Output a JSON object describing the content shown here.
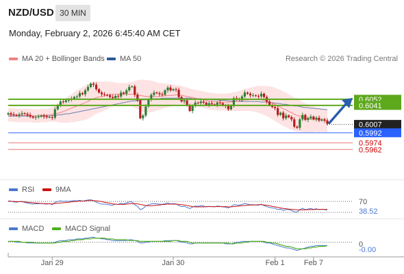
{
  "header": {
    "symbol": "NZD/USD",
    "timeframe": "30 MIN"
  },
  "datetime": "Monday, February 2, 2026 6:45:40 AM CET",
  "legend": {
    "ma20_label": "MA 20 + Bollinger Bands",
    "ma50_label": "MA 50",
    "copyright": "Research © 2026 Trading Central"
  },
  "rsi_panel": {
    "rsi_label": "RSI",
    "ma_label": "9MA",
    "level": "70",
    "value": "38.52"
  },
  "macd_panel": {
    "macd_label": "MACD",
    "signal_label": "MACD Signal",
    "zero_tick": "0",
    "value": "-0.00"
  },
  "colors": {
    "up": "#2e7d32",
    "down": "#b71c1c",
    "ma20": "#f08080",
    "ma50": "#2b5797",
    "band": "#fde3e3",
    "resistance": "#5ea81c",
    "support": "#2962ff",
    "support_weak": "#f2a0a0",
    "rsi": "#4a78d0",
    "rsi_ma": "#cc1111",
    "macd": "#4a78d0",
    "macd_signal": "#4caf1a"
  },
  "chart_data": {
    "type": "candlestick",
    "symbol": "NZD/USD",
    "ylim": [
      0.5955,
      0.6085
    ],
    "x_tick_labels": [
      "Jan 29",
      "Jan 30",
      "Feb 1",
      "Feb 7"
    ],
    "x_tick_index": [
      16,
      60,
      97,
      111
    ],
    "closes": [
      0.6027,
      0.6025,
      0.6024,
      0.6023,
      0.6025,
      0.6027,
      0.6026,
      0.6024,
      0.6021,
      0.6019,
      0.602,
      0.6021,
      0.6023,
      0.6021,
      0.602,
      0.602,
      0.6019,
      0.6034,
      0.6042,
      0.6048,
      0.6047,
      0.605,
      0.6051,
      0.6053,
      0.6056,
      0.6057,
      0.6063,
      0.6061,
      0.6068,
      0.6074,
      0.608,
      0.6078,
      0.607,
      0.6064,
      0.6061,
      0.606,
      0.6059,
      0.6056,
      0.6054,
      0.6058,
      0.6057,
      0.6064,
      0.6062,
      0.6068,
      0.6074,
      0.6075,
      0.606,
      0.605,
      0.6018,
      0.6023,
      0.6039,
      0.6052,
      0.606,
      0.6064,
      0.6063,
      0.6061,
      0.606,
      0.6068,
      0.6073,
      0.6068,
      0.607,
      0.6069,
      0.6056,
      0.6048,
      0.605,
      0.6042,
      0.6031,
      0.604,
      0.6046,
      0.6045,
      0.6048,
      0.6046,
      0.6042,
      0.6045,
      0.6043,
      0.6042,
      0.6046,
      0.6045,
      0.6041,
      0.604,
      0.6034,
      0.6041,
      0.6054,
      0.6053,
      0.6051,
      0.6057,
      0.6064,
      0.6062,
      0.6059,
      0.6059,
      0.6058,
      0.6057,
      0.6062,
      0.6056,
      0.6048,
      0.6042,
      0.6038,
      0.6036,
      0.6024,
      0.6028,
      0.6018,
      0.6023,
      0.602,
      0.6016,
      0.6003,
      0.6001,
      0.6016,
      0.6024,
      0.6015,
      0.6018,
      0.6021,
      0.6016,
      0.6019,
      0.6014,
      0.6016,
      0.6014,
      0.6008
    ],
    "ma20": [
      0.6024,
      0.6024,
      0.6024,
      0.6023,
      0.6023,
      0.6023,
      0.6023,
      0.6023,
      0.6023,
      0.6022,
      0.6022,
      0.6022,
      0.6023,
      0.6023,
      0.6023,
      0.6024,
      0.6025,
      0.6026,
      0.6027,
      0.6028,
      0.603,
      0.6032,
      0.6034,
      0.6036,
      0.6038,
      0.604,
      0.6042,
      0.6044,
      0.6046,
      0.6048,
      0.6051,
      0.6053,
      0.6055,
      0.6056,
      0.6057,
      0.6058,
      0.6059,
      0.606,
      0.6061,
      0.6061,
      0.6061,
      0.6061,
      0.6061,
      0.6061,
      0.6061,
      0.6061,
      0.6061,
      0.606,
      0.6059,
      0.6058,
      0.6057,
      0.6057,
      0.6057,
      0.6057,
      0.6057,
      0.6057,
      0.6058,
      0.6058,
      0.6059,
      0.6059,
      0.6059,
      0.606,
      0.606,
      0.6059,
      0.6058,
      0.6057,
      0.6056,
      0.6055,
      0.6054,
      0.6053,
      0.6052,
      0.6051,
      0.605,
      0.6049,
      0.6048,
      0.6048,
      0.6047,
      0.6047,
      0.6047,
      0.6047,
      0.6047,
      0.6047,
      0.6048,
      0.6048,
      0.6049,
      0.605,
      0.6051,
      0.6051,
      0.6052,
      0.6052,
      0.6052,
      0.6052,
      0.6051,
      0.605,
      0.6049,
      0.6047,
      0.6045,
      0.6043,
      0.604,
      0.6038,
      0.6035,
      0.6033,
      0.603,
      0.6028,
      0.6025,
      0.6023,
      0.6022,
      0.602,
      0.6019,
      0.6018,
      0.6017,
      0.6016,
      0.6016,
      0.6015,
      0.6015,
      0.6014,
      0.6014
    ],
    "ma50": [
      0.6022,
      0.6022,
      0.6022,
      0.6022,
      0.6022,
      0.6022,
      0.6022,
      0.6022,
      0.6022,
      0.6022,
      0.6022,
      0.6022,
      0.6022,
      0.6022,
      0.6022,
      0.6022,
      0.6023,
      0.6023,
      0.6024,
      0.6024,
      0.6025,
      0.6026,
      0.6026,
      0.6027,
      0.6028,
      0.6029,
      0.603,
      0.6031,
      0.6032,
      0.6033,
      0.6034,
      0.6035,
      0.6036,
      0.6037,
      0.6038,
      0.6039,
      0.604,
      0.6041,
      0.6042,
      0.6043,
      0.6044,
      0.6045,
      0.6046,
      0.6047,
      0.6048,
      0.6049,
      0.6049,
      0.605,
      0.605,
      0.6051,
      0.6051,
      0.6052,
      0.6052,
      0.6053,
      0.6053,
      0.6053,
      0.6054,
      0.6054,
      0.6054,
      0.6054,
      0.6054,
      0.6054,
      0.6054,
      0.6054,
      0.6054,
      0.6054,
      0.6054,
      0.6053,
      0.6053,
      0.6053,
      0.6053,
      0.6052,
      0.6052,
      0.6052,
      0.6051,
      0.6051,
      0.6051,
      0.605,
      0.605,
      0.605,
      0.6049,
      0.6049,
      0.6049,
      0.6049,
      0.6048,
      0.6048,
      0.6048,
      0.6048,
      0.6048,
      0.6048,
      0.6048,
      0.6048,
      0.6047,
      0.6047,
      0.6047,
      0.6046,
      0.6046,
      0.6045,
      0.6045,
      0.6044,
      0.6043,
      0.6043,
      0.6042,
      0.6041,
      0.604,
      0.604,
      0.6039,
      0.6038,
      0.6037,
      0.6037,
      0.6036,
      0.6036,
      0.6035,
      0.6035,
      0.6034,
      0.6034,
      0.6033
    ],
    "band_width": [
      0.0012,
      0.0012,
      0.0012,
      0.0012,
      0.0012,
      0.0012,
      0.0012,
      0.0012,
      0.0012,
      0.0012,
      0.0012,
      0.0012,
      0.0012,
      0.0012,
      0.0012,
      0.0012,
      0.0013,
      0.0014,
      0.0016,
      0.0018,
      0.002,
      0.0022,
      0.0024,
      0.0025,
      0.0027,
      0.0028,
      0.0029,
      0.003,
      0.0031,
      0.0031,
      0.0031,
      0.003,
      0.0029,
      0.0028,
      0.0027,
      0.0026,
      0.0025,
      0.0023,
      0.0022,
      0.0021,
      0.002,
      0.002,
      0.002,
      0.002,
      0.0021,
      0.0022,
      0.0024,
      0.0026,
      0.0028,
      0.0029,
      0.0029,
      0.0029,
      0.0028,
      0.0027,
      0.0025,
      0.0024,
      0.0023,
      0.0022,
      0.0021,
      0.002,
      0.0019,
      0.0018,
      0.0017,
      0.0017,
      0.0016,
      0.0016,
      0.0015,
      0.0015,
      0.0015,
      0.0015,
      0.0015,
      0.0015,
      0.0015,
      0.0015,
      0.0015,
      0.0015,
      0.0015,
      0.0015,
      0.0015,
      0.0015,
      0.0016,
      0.0016,
      0.0017,
      0.0017,
      0.0018,
      0.0019,
      0.002,
      0.002,
      0.0021,
      0.0022,
      0.0023,
      0.0024,
      0.0025,
      0.0026,
      0.0027,
      0.0028,
      0.0029,
      0.003,
      0.003,
      0.0031,
      0.0031,
      0.0031,
      0.0031,
      0.003,
      0.003,
      0.0029,
      0.0028,
      0.0027,
      0.0026,
      0.0025,
      0.0024,
      0.0023,
      0.0022,
      0.0022,
      0.0021,
      0.0021,
      0.0021
    ],
    "last_price": 0.6007,
    "resistance_levels": [
      0.6052,
      0.6041
    ],
    "support_levels": [
      0.5992,
      0.5974,
      0.5962
    ],
    "price_labels": [
      "0.6052",
      "0.6041",
      "0.6007",
      "0.5992",
      "0.5974",
      "0.5962"
    ],
    "rsi": {
      "ylim": [
        0,
        100
      ],
      "level": 70,
      "last": 38.52,
      "rsi": [
        72,
        71,
        68,
        67,
        69,
        70,
        66,
        64,
        62,
        60,
        62,
        61,
        63,
        61,
        60,
        62,
        58,
        66,
        70,
        72,
        70,
        71,
        70,
        72,
        73,
        72,
        74,
        71,
        73,
        75,
        76,
        73,
        67,
        63,
        60,
        60,
        59,
        57,
        56,
        60,
        59,
        63,
        61,
        64,
        68,
        68,
        58,
        52,
        40,
        44,
        53,
        58,
        61,
        62,
        61,
        60,
        59,
        62,
        64,
        61,
        62,
        61,
        55,
        51,
        52,
        48,
        44,
        49,
        53,
        52,
        54,
        53,
        50,
        52,
        51,
        50,
        53,
        52,
        50,
        49,
        46,
        51,
        58,
        57,
        56,
        59,
        62,
        60,
        58,
        58,
        57,
        56,
        60,
        55,
        51,
        48,
        46,
        45,
        40,
        42,
        37,
        41,
        40,
        37,
        32,
        31,
        40,
        45,
        40,
        42,
        44,
        41,
        43,
        40,
        41,
        40,
        38.5
      ],
      "ma": [
        70,
        70,
        70,
        69,
        69,
        69,
        68,
        67,
        66,
        65,
        64,
        63,
        62,
        62,
        62,
        61,
        61,
        62,
        63,
        64,
        65,
        66,
        67,
        68,
        69,
        70,
        71,
        71,
        72,
        73,
        73,
        73,
        72,
        71,
        69,
        67,
        65,
        63,
        61,
        60,
        59,
        59,
        59,
        60,
        61,
        62,
        62,
        61,
        59,
        57,
        55,
        54,
        54,
        55,
        56,
        57,
        58,
        59,
        60,
        60,
        60,
        60,
        59,
        58,
        57,
        55,
        53,
        51,
        50,
        50,
        50,
        50,
        51,
        51,
        51,
        51,
        51,
        51,
        51,
        51,
        50,
        50,
        51,
        52,
        53,
        54,
        55,
        56,
        57,
        57,
        57,
        58,
        58,
        57,
        56,
        54,
        52,
        50,
        48,
        46,
        44,
        43,
        42,
        41,
        40,
        39,
        39,
        39,
        39,
        40,
        40,
        40,
        41,
        41,
        41,
        41,
        40.5
      ]
    },
    "macd": {
      "ylim": [
        -0.0012,
        0.0008
      ],
      "last": -0.0,
      "macd": [
        0.0001,
        0.0001,
        0.0001,
        0.0,
        0.0,
        0.0,
        0.0,
        -0.0001,
        -0.0001,
        -0.0001,
        -0.0001,
        -0.0001,
        -0.0001,
        -0.0001,
        -0.0001,
        -0.0001,
        -0.0001,
        0.0,
        0.0001,
        0.0002,
        0.0002,
        0.0002,
        0.0003,
        0.0003,
        0.0003,
        0.0004,
        0.0004,
        0.0004,
        0.0005,
        0.0005,
        0.0006,
        0.0006,
        0.0005,
        0.0005,
        0.0004,
        0.0004,
        0.0003,
        0.0003,
        0.0002,
        0.0002,
        0.0002,
        0.0002,
        0.0002,
        0.0002,
        0.0003,
        0.0003,
        0.0002,
        0.0001,
        -0.0001,
        -0.0001,
        0.0,
        0.0,
        0.0001,
        0.0001,
        0.0001,
        0.0001,
        0.0001,
        0.0002,
        0.0002,
        0.0002,
        0.0002,
        0.0002,
        0.0001,
        0.0,
        0.0,
        -0.0001,
        -0.0002,
        -0.0002,
        -0.0001,
        -0.0001,
        -0.0001,
        -0.0001,
        -0.0001,
        -0.0001,
        -0.0001,
        -0.0001,
        -0.0001,
        -0.0001,
        -0.0001,
        -0.0002,
        -0.0002,
        -0.0002,
        -0.0001,
        0.0,
        0.0,
        0.0001,
        0.0001,
        0.0001,
        0.0001,
        0.0001,
        0.0001,
        0.0001,
        0.0001,
        0.0,
        -0.0001,
        -0.0001,
        -0.0002,
        -0.0003,
        -0.0004,
        -0.0005,
        -0.0006,
        -0.0007,
        -0.0007,
        -0.0008,
        -0.0009,
        -0.001,
        -0.0009,
        -0.0008,
        -0.0007,
        -0.0006,
        -0.0005,
        -0.0005,
        -0.0004,
        -0.0004,
        -0.0004,
        -0.0004,
        -0.0004
      ],
      "signal": [
        0.0001,
        0.0001,
        0.0001,
        0.0001,
        0.0001,
        0.0,
        0.0,
        0.0,
        0.0,
        0.0,
        -0.0001,
        -0.0001,
        -0.0001,
        -0.0001,
        -0.0001,
        -0.0001,
        -0.0001,
        -0.0001,
        0.0,
        0.0,
        0.0001,
        0.0001,
        0.0001,
        0.0002,
        0.0002,
        0.0003,
        0.0003,
        0.0003,
        0.0004,
        0.0004,
        0.0004,
        0.0005,
        0.0005,
        0.0005,
        0.0005,
        0.0005,
        0.0004,
        0.0004,
        0.0004,
        0.0003,
        0.0003,
        0.0003,
        0.0003,
        0.0003,
        0.0002,
        0.0002,
        0.0002,
        0.0002,
        0.0001,
        0.0001,
        0.0001,
        0.0001,
        0.0001,
        0.0001,
        0.0001,
        0.0001,
        0.0001,
        0.0001,
        0.0001,
        0.0001,
        0.0002,
        0.0002,
        0.0002,
        0.0001,
        0.0001,
        0.0001,
        0.0,
        -0.0001,
        -0.0001,
        -0.0001,
        -0.0001,
        -0.0001,
        -0.0001,
        -0.0001,
        -0.0001,
        -0.0001,
        -0.0001,
        -0.0001,
        -0.0001,
        -0.0001,
        -0.0001,
        -0.0002,
        -0.0002,
        -0.0001,
        -0.0001,
        -0.0001,
        0.0,
        0.0,
        0.0001,
        0.0001,
        0.0001,
        0.0001,
        0.0001,
        0.0001,
        0.0,
        0.0,
        -0.0001,
        -0.0001,
        -0.0002,
        -0.0003,
        -0.0004,
        -0.0005,
        -0.0005,
        -0.0006,
        -0.0007,
        -0.0008,
        -0.0008,
        -0.0008,
        -0.0008,
        -0.0007,
        -0.0007,
        -0.0006,
        -0.0006,
        -0.0005,
        -0.0005,
        -0.0005,
        -0.0004
      ]
    }
  }
}
